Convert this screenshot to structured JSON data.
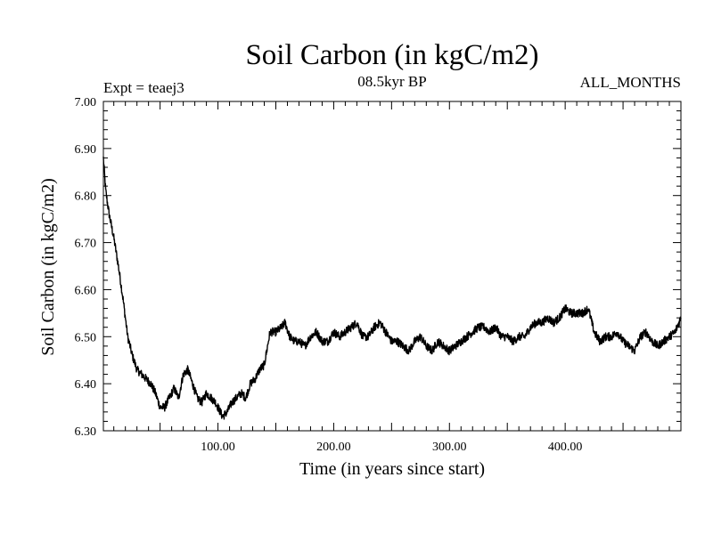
{
  "chart_data": {
    "type": "line",
    "title": "Soil Carbon (in kgC/m2)",
    "subtitle": "08.5kyr BP",
    "left_note": "Expt = teaej3",
    "right_note": "ALL_MONTHS",
    "xlabel": "Time (in years since start)",
    "ylabel": "Soil Carbon (in kgC/m2)",
    "xlim": [
      1,
      500
    ],
    "ylim": [
      6.3,
      7.0
    ],
    "x_ticks": [
      100,
      200,
      300,
      400
    ],
    "x_tick_labels": [
      "100.00",
      "200.00",
      "300.00",
      "400.00"
    ],
    "y_ticks": [
      6.3,
      6.4,
      6.5,
      6.6,
      6.7,
      6.8,
      6.9,
      7.0
    ],
    "y_tick_labels": [
      "6.30",
      "6.40",
      "6.50",
      "6.60",
      "6.70",
      "6.80",
      "6.90",
      "7.00"
    ],
    "series": [
      {
        "name": "Soil Carbon",
        "color": "#000000",
        "x": [
          1,
          3,
          6,
          10,
          14,
          18,
          22,
          26,
          30,
          34,
          38,
          42,
          46,
          50,
          54,
          58,
          62,
          66,
          70,
          74,
          78,
          82,
          86,
          90,
          94,
          98,
          100,
          104,
          108,
          112,
          116,
          120,
          124,
          128,
          132,
          136,
          140,
          145,
          150,
          155,
          158,
          162,
          166,
          170,
          175,
          180,
          185,
          190,
          195,
          200,
          205,
          210,
          215,
          220,
          225,
          230,
          235,
          240,
          245,
          250,
          255,
          260,
          265,
          270,
          275,
          280,
          285,
          290,
          295,
          300,
          305,
          310,
          315,
          320,
          325,
          330,
          335,
          340,
          345,
          350,
          355,
          360,
          365,
          370,
          375,
          380,
          385,
          390,
          395,
          400,
          405,
          410,
          415,
          420,
          425,
          430,
          435,
          440,
          445,
          450,
          455,
          460,
          465,
          470,
          475,
          480,
          485,
          490,
          495,
          500
        ],
        "values": [
          6.88,
          6.81,
          6.76,
          6.71,
          6.65,
          6.58,
          6.5,
          6.46,
          6.43,
          6.42,
          6.41,
          6.4,
          6.38,
          6.35,
          6.35,
          6.37,
          6.39,
          6.37,
          6.42,
          6.43,
          6.4,
          6.37,
          6.36,
          6.38,
          6.37,
          6.36,
          6.35,
          6.33,
          6.34,
          6.36,
          6.37,
          6.38,
          6.37,
          6.4,
          6.41,
          6.43,
          6.44,
          6.51,
          6.51,
          6.52,
          6.53,
          6.5,
          6.49,
          6.49,
          6.48,
          6.5,
          6.51,
          6.49,
          6.49,
          6.51,
          6.5,
          6.51,
          6.52,
          6.53,
          6.5,
          6.5,
          6.52,
          6.53,
          6.51,
          6.49,
          6.49,
          6.48,
          6.47,
          6.49,
          6.5,
          6.48,
          6.47,
          6.49,
          6.48,
          6.47,
          6.48,
          6.49,
          6.5,
          6.51,
          6.52,
          6.52,
          6.51,
          6.52,
          6.5,
          6.5,
          6.49,
          6.5,
          6.5,
          6.52,
          6.53,
          6.53,
          6.54,
          6.53,
          6.54,
          6.56,
          6.55,
          6.55,
          6.55,
          6.56,
          6.51,
          6.49,
          6.5,
          6.5,
          6.51,
          6.49,
          6.48,
          6.47,
          6.5,
          6.51,
          6.49,
          6.48,
          6.49,
          6.5,
          6.51,
          6.54
        ]
      }
    ]
  }
}
